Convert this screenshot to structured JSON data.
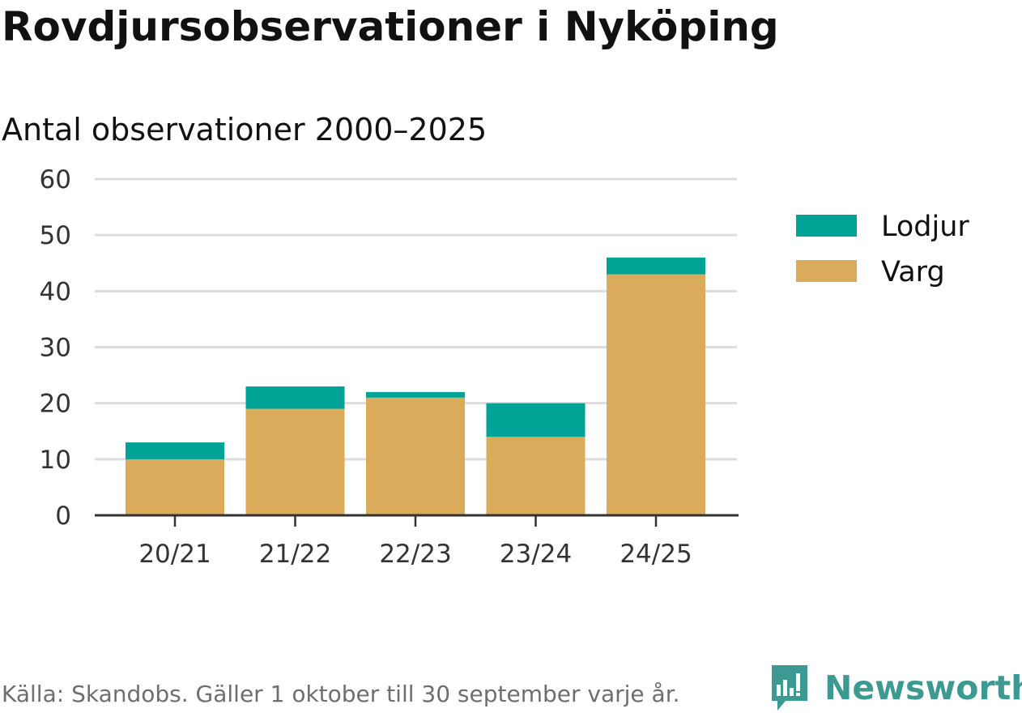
{
  "header": {
    "title": "Rovdjursobservationer i Nyköping",
    "subtitle": "Antal observationer 2000–2025"
  },
  "footer": {
    "source": "Källa: Skandobs. Gäller 1 oktober till 30 september varje år.",
    "brand": "Newsworthy"
  },
  "colors": {
    "lodjur": "#00a396",
    "varg": "#d9ab5a",
    "grid": "#dcdcdc",
    "axis": "#333333",
    "brand": "#3d9a92"
  },
  "chart_data": {
    "type": "bar",
    "stacked": true,
    "title": "Rovdjursobservationer i Nyköping",
    "subtitle": "Antal observationer 2000–2025",
    "xlabel": "",
    "ylabel": "",
    "categories": [
      "20/21",
      "21/22",
      "22/23",
      "23/24",
      "24/25"
    ],
    "series": [
      {
        "name": "Varg",
        "values": [
          10,
          19,
          21,
          14,
          43
        ],
        "color": "#d9ab5a"
      },
      {
        "name": "Lodjur",
        "values": [
          3,
          4,
          1,
          6,
          3
        ],
        "color": "#00a396"
      }
    ],
    "ylim": [
      0,
      60
    ],
    "yticks": [
      0,
      10,
      20,
      30,
      40,
      50,
      60
    ],
    "grid": true,
    "legend": {
      "position": "right",
      "order": [
        "Lodjur",
        "Varg"
      ]
    }
  }
}
